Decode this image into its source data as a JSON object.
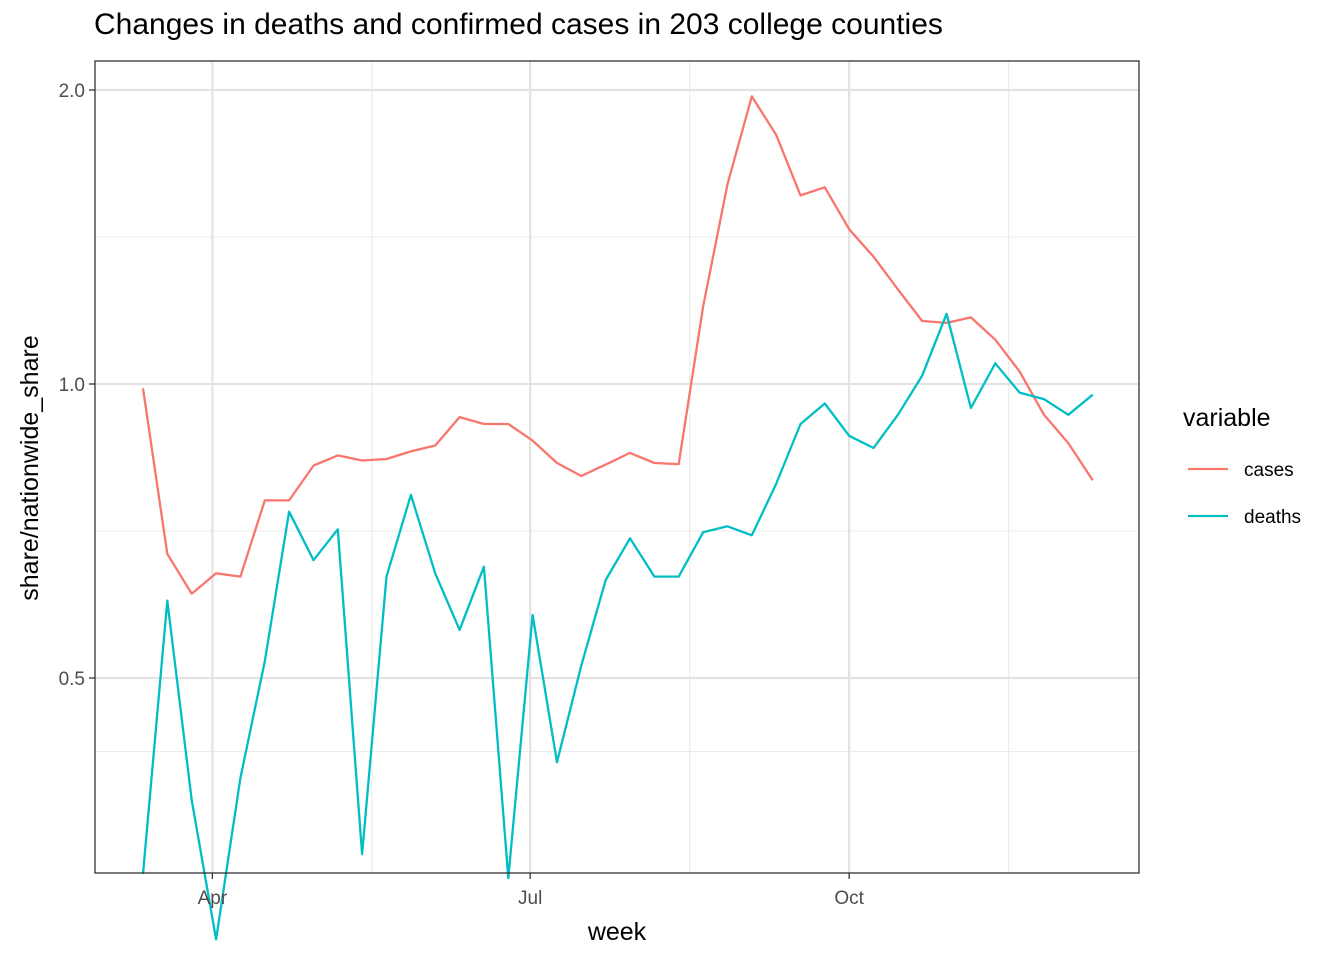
{
  "chart_data": {
    "type": "line",
    "title": "Changes in deaths and confirmed cases in 203 college counties",
    "xlabel": "week",
    "ylabel": "share/nationwide_share",
    "y_scale": "log",
    "ylim": [
      0.28,
      2.1
    ],
    "y_ticks": [
      0.5,
      1.0,
      2.0
    ],
    "y_tick_labels": [
      "0.5",
      "1.0",
      "2.0"
    ],
    "x_tick_labels": [
      "Apr",
      "Jul",
      "Oct"
    ],
    "grid": true,
    "legend": {
      "title": "variable",
      "position": "right"
    },
    "series": [
      {
        "name": "cases",
        "color": "#F8766D",
        "values": [
          0.99,
          0.67,
          0.61,
          0.64,
          0.635,
          0.76,
          0.76,
          0.825,
          0.845,
          0.835,
          0.838,
          0.853,
          0.865,
          0.925,
          0.91,
          0.91,
          0.875,
          0.83,
          0.805,
          0.827,
          0.85,
          0.83,
          0.828,
          1.2,
          1.6,
          1.97,
          1.8,
          1.56,
          1.59,
          1.44,
          1.35,
          1.25,
          1.16,
          1.155,
          1.17,
          1.11,
          1.03,
          0.93,
          0.87,
          0.797
        ]
      },
      {
        "name": "deaths",
        "color": "#00BFC4",
        "values": [
          0.315,
          0.6,
          0.375,
          0.27,
          0.395,
          0.52,
          0.74,
          0.66,
          0.71,
          0.33,
          0.635,
          0.77,
          0.64,
          0.56,
          0.65,
          0.312,
          0.58,
          0.41,
          0.515,
          0.63,
          0.695,
          0.635,
          0.635,
          0.705,
          0.715,
          0.7,
          0.79,
          0.91,
          0.955,
          0.885,
          0.86,
          0.93,
          1.02,
          1.18,
          0.945,
          1.05,
          0.98,
          0.965,
          0.93,
          0.975
        ]
      }
    ]
  }
}
